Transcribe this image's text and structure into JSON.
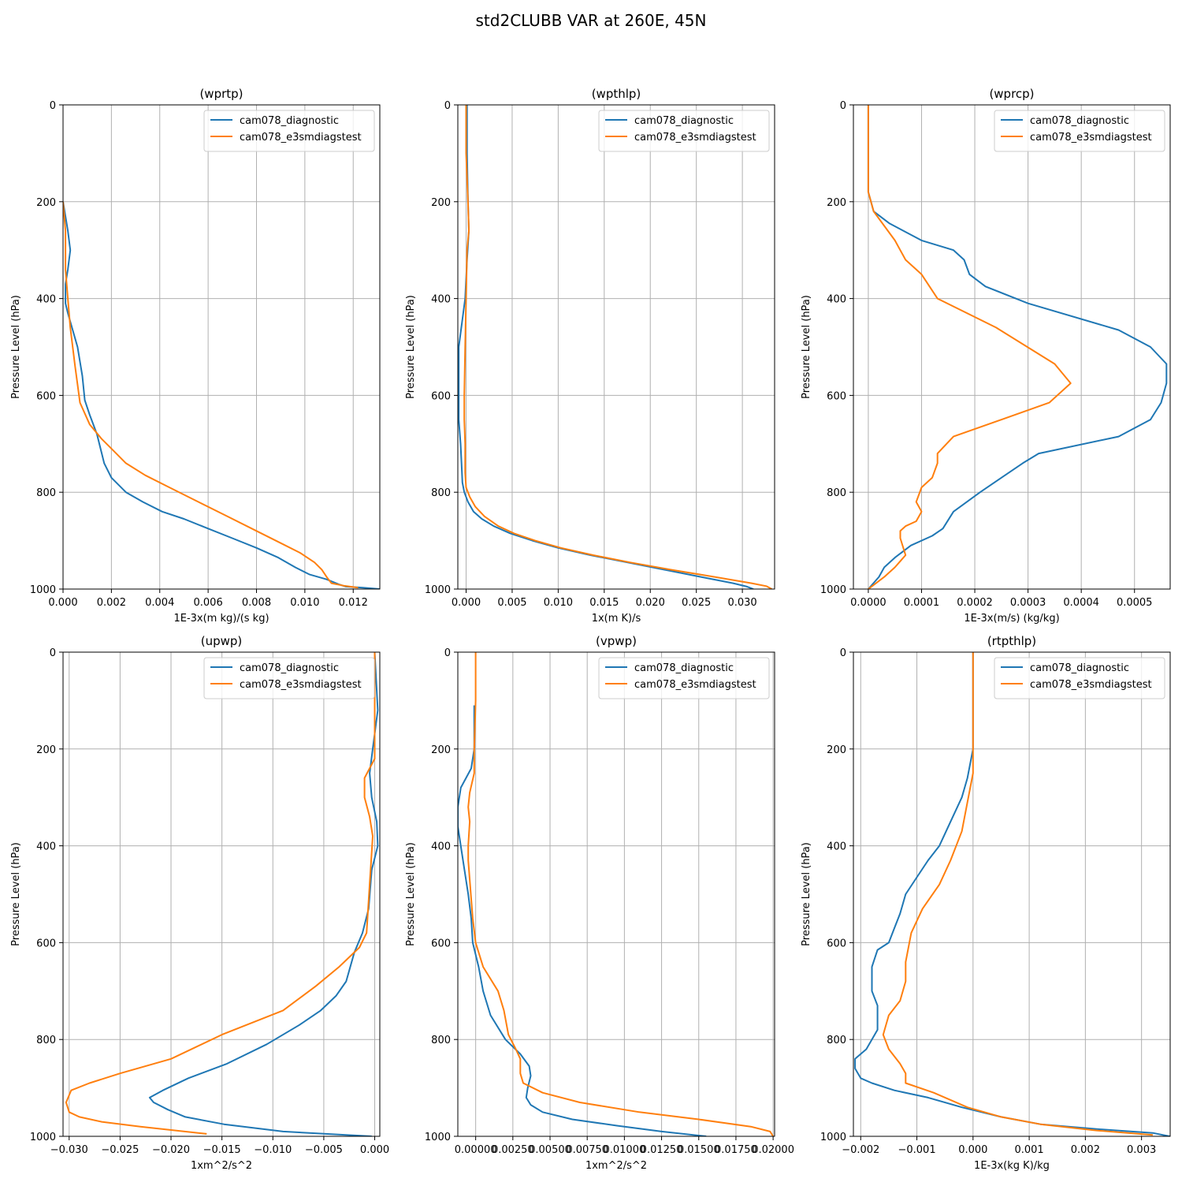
{
  "figure": {
    "title": "std2CLUBB VAR at 260E, 45N"
  },
  "colors": {
    "diag": "#1f77b4",
    "test": "#ff7f0e",
    "grid": "#b0b0b0",
    "axis": "#000000"
  },
  "chart_data": [
    {
      "type": "line",
      "title": "(wprtp)",
      "xlabel": "1E-3x(m kg)/(s kg)",
      "ylabel": "Pressure Level (hPa)",
      "xlim": [
        0,
        0.0131
      ],
      "ylim": [
        1000,
        0
      ],
      "xticks": [
        0,
        0.002,
        0.004,
        0.006,
        0.008,
        0.01,
        0.012
      ],
      "xticklabels": [
        "0.000",
        "0.002",
        "0.004",
        "0.006",
        "0.008",
        "0.010",
        "0.012"
      ],
      "yticks": [
        0,
        200,
        400,
        600,
        800,
        1000
      ],
      "yticklabels": [
        "0",
        "200",
        "400",
        "600",
        "800",
        "1000"
      ],
      "legend": "upper right",
      "series": [
        {
          "name": "cam078_diagnostic",
          "color": "#1f77b4",
          "x": [
            0,
            0.0002,
            0.0003,
            0.0002,
            0.0001,
            0.0001,
            0.0002,
            0.0006,
            0.0008,
            0.0009,
            0.0011,
            0.0014,
            0.0017,
            0.002,
            0.0026,
            0.0033,
            0.0041,
            0.005,
            0.006,
            0.007,
            0.008,
            0.0089,
            0.0096,
            0.0102,
            0.0109,
            0.0114,
            0.0117,
            0.0124,
            0.0131
          ],
          "y": [
            200,
            260,
            300,
            340,
            370,
            410,
            430,
            500,
            560,
            610,
            640,
            680,
            740,
            770,
            800,
            820,
            840,
            855,
            875,
            895,
            915,
            935,
            955,
            970,
            980,
            990,
            995,
            997,
            1000
          ]
        },
        {
          "name": "cam078_e3smdiagstest",
          "color": "#ff7f0e",
          "x": [
            0,
            0.0001,
            0.0001,
            0.0001,
            0.0002,
            0.0003,
            0.0005,
            0.0007,
            0.0011,
            0.0016,
            0.002,
            0.0026,
            0.0034,
            0.0044,
            0.0056,
            0.0068,
            0.008,
            0.009,
            0.0098,
            0.0104,
            0.0107,
            0.0109,
            0.0111,
            0.0116,
            0.0122
          ],
          "y": [
            200,
            260,
            300,
            340,
            400,
            460,
            540,
            615,
            660,
            690,
            710,
            740,
            765,
            790,
            820,
            850,
            880,
            905,
            925,
            945,
            960,
            975,
            988,
            993,
            997
          ]
        }
      ]
    },
    {
      "type": "line",
      "title": "(wpthlp)",
      "xlabel": "1x(m K)/s",
      "ylabel": "Pressure Level (hPa)",
      "xlim": [
        -0.0009,
        0.0335
      ],
      "ylim": [
        1000,
        0
      ],
      "xticks": [
        0,
        0.005,
        0.01,
        0.015,
        0.02,
        0.025,
        0.03
      ],
      "xticklabels": [
        "0.000",
        "0.005",
        "0.010",
        "0.015",
        "0.020",
        "0.025",
        "0.030"
      ],
      "yticks": [
        0,
        200,
        400,
        600,
        800,
        1000
      ],
      "yticklabels": [
        "0",
        "200",
        "400",
        "600",
        "800",
        "1000"
      ],
      "legend": "upper right",
      "series": [
        {
          "name": "cam078_diagnostic",
          "color": "#1f77b4",
          "x": [
            0.0001,
            0.0001,
            0.0002,
            0.0003,
            0.0001,
            -0.0001,
            -0.0008,
            -0.0008,
            -0.0008,
            -0.0006,
            -0.0005,
            -0.0004,
            -0.0002,
            0.0002,
            0.0008,
            0.0017,
            0.003,
            0.0048,
            0.0072,
            0.01,
            0.0135,
            0.0175,
            0.0215,
            0.0255,
            0.029,
            0.0305,
            0.0312
          ],
          "y": [
            0,
            100,
            200,
            260,
            320,
            400,
            500,
            600,
            650,
            700,
            740,
            780,
            800,
            820,
            840,
            855,
            870,
            885,
            900,
            915,
            930,
            945,
            960,
            975,
            988,
            995,
            1000
          ]
        },
        {
          "name": "cam078_e3smdiagstest",
          "color": "#ff7f0e",
          "x": [
            0,
            0,
            0.0002,
            0.0003,
            0.0001,
            0,
            -0.0001,
            -0.0002,
            -0.0002,
            -0.0001,
            -0.0001,
            0,
            0.0004,
            0.001,
            0.002,
            0.0035,
            0.0052,
            0.0075,
            0.0103,
            0.0138,
            0.0178,
            0.0222,
            0.027,
            0.031,
            0.0326,
            0.0332
          ],
          "y": [
            0,
            100,
            200,
            260,
            300,
            400,
            500,
            600,
            650,
            700,
            760,
            790,
            810,
            830,
            850,
            870,
            885,
            900,
            915,
            930,
            945,
            960,
            975,
            988,
            994,
            1000
          ]
        }
      ]
    },
    {
      "type": "line",
      "title": "(wprcp)",
      "xlabel": "1E-3x(m/s) (kg/kg)",
      "ylabel": "Pressure Level (hPa)",
      "xlim": [
        -2.8e-05,
        0.000567
      ],
      "ylim": [
        1000,
        0
      ],
      "xticks": [
        0,
        0.0001,
        0.0002,
        0.0003,
        0.0004,
        0.0005
      ],
      "xticklabels": [
        "0.0000",
        "0.0001",
        "0.0002",
        "0.0003",
        "0.0004",
        "0.0005"
      ],
      "yticks": [
        0,
        200,
        400,
        600,
        800,
        1000
      ],
      "yticklabels": [
        "0",
        "200",
        "400",
        "600",
        "800",
        "1000"
      ],
      "legend": "upper right",
      "series": [
        {
          "name": "cam078_diagnostic",
          "color": "#1f77b4",
          "x": [
            0,
            0,
            1e-05,
            4e-05,
            0.0001,
            0.00016,
            0.00018,
            0.00019,
            0.00022,
            0.0003,
            0.00047,
            0.00053,
            0.00056,
            0.00056,
            0.00055,
            0.00053,
            0.00047,
            0.00032,
            0.00029,
            0.00025,
            0.00021,
            0.00016,
            0.00014,
            0.00012,
            8e-05,
            5e-05,
            3e-05,
            2e-05,
            0
          ],
          "y": [
            0,
            180,
            220,
            245,
            280,
            300,
            320,
            350,
            375,
            410,
            465,
            500,
            535,
            575,
            615,
            650,
            685,
            720,
            740,
            770,
            800,
            840,
            875,
            890,
            910,
            935,
            955,
            975,
            1000
          ]
        },
        {
          "name": "cam078_e3smdiagstest",
          "color": "#ff7f0e",
          "x": [
            0,
            0,
            1e-05,
            3e-05,
            5e-05,
            7e-05,
            0.0001,
            0.00013,
            0.00024,
            0.00035,
            0.00038,
            0.00034,
            0.00016,
            0.00013,
            0.00013,
            0.00012,
            0.0001,
            9e-05,
            0.0001,
            9e-05,
            7e-05,
            6e-05,
            6e-05,
            7e-05,
            5e-05,
            3e-05,
            0
          ],
          "y": [
            0,
            180,
            220,
            250,
            280,
            320,
            350,
            400,
            460,
            535,
            575,
            615,
            685,
            720,
            740,
            770,
            790,
            820,
            840,
            860,
            870,
            880,
            895,
            930,
            955,
            975,
            1000
          ]
        }
      ]
    },
    {
      "type": "line",
      "title": "(upwp)",
      "xlabel": "1xm^2/s^2",
      "ylabel": "Pressure Level (hPa)",
      "xlim": [
        -0.0306,
        0.0005
      ],
      "ylim": [
        1000,
        0
      ],
      "xticks": [
        -0.03,
        -0.025,
        -0.02,
        -0.015,
        -0.01,
        -0.005,
        0
      ],
      "xticklabels": [
        "−0.030",
        "−0.025",
        "−0.020",
        "−0.015",
        "−0.010",
        "−0.005",
        "0.000"
      ],
      "yticks": [
        0,
        200,
        400,
        600,
        800,
        1000
      ],
      "yticklabels": [
        "0",
        "200",
        "400",
        "600",
        "800",
        "1000"
      ],
      "legend": "upper right",
      "series": [
        {
          "name": "cam078_diagnostic",
          "color": "#1f77b4",
          "x": [
            0,
            0.0003,
            -0.0002,
            -0.0005,
            -0.0003,
            0.0002,
            0.0003,
            -0.0003,
            -0.0006,
            -0.0012,
            -0.002,
            -0.0028,
            -0.0038,
            -0.0053,
            -0.0074,
            -0.0106,
            -0.0145,
            -0.0183,
            -0.0208,
            -0.0221,
            -0.0217,
            -0.0203,
            -0.0186,
            -0.0148,
            -0.009,
            -0.0003
          ],
          "y": [
            0,
            120,
            200,
            250,
            300,
            350,
            400,
            450,
            530,
            580,
            620,
            680,
            710,
            740,
            770,
            810,
            850,
            880,
            905,
            920,
            930,
            945,
            960,
            975,
            990,
            1000
          ]
        },
        {
          "name": "cam078_e3smdiagstest",
          "color": "#ff7f0e",
          "x": [
            0,
            0,
            0,
            -0.001,
            -0.001,
            -0.0005,
            -0.0002,
            -0.0005,
            -0.0008,
            -0.0015,
            -0.0035,
            -0.0058,
            -0.009,
            -0.015,
            -0.02,
            -0.025,
            -0.028,
            -0.0298,
            -0.0303,
            -0.03,
            -0.029,
            -0.0268,
            -0.023,
            -0.0165
          ],
          "y": [
            0,
            100,
            220,
            260,
            300,
            340,
            380,
            480,
            580,
            610,
            650,
            690,
            740,
            790,
            840,
            870,
            890,
            905,
            930,
            950,
            960,
            970,
            980,
            995
          ]
        }
      ]
    },
    {
      "type": "line",
      "title": "(vpwp)",
      "xlabel": "1xm^2/s^2",
      "ylabel": "Pressure Level (hPa)",
      "xlim": [
        -0.0012,
        0.0201
      ],
      "ylim": [
        1000,
        0
      ],
      "xticks": [
        0,
        0.0025,
        0.005,
        0.0075,
        0.01,
        0.0125,
        0.015,
        0.0175,
        0.02
      ],
      "xticklabels": [
        "0.00000",
        "0.00250",
        "0.00500",
        "0.00750",
        "0.01000",
        "0.01250",
        "0.01500",
        "0.01750",
        "0.02000"
      ],
      "yticks": [
        0,
        200,
        400,
        600,
        800,
        1000
      ],
      "yticklabels": [
        "0",
        "200",
        "400",
        "600",
        "800",
        "1000"
      ],
      "legend": "upper right",
      "series": [
        {
          "name": "cam078_diagnostic",
          "color": "#1f77b4",
          "x": [
            -0.0001,
            -0.0001,
            -0.0001,
            -0.0003,
            -0.001,
            -0.0012,
            -0.0012,
            -0.0008,
            -0.0005,
            -0.0003,
            -0.0002,
            0.0002,
            0.0005,
            0.001,
            0.002,
            0.003,
            0.0036,
            0.0037,
            0.0035,
            0.0034,
            0.0037,
            0.0045,
            0.0065,
            0.0095,
            0.0125,
            0.0155
          ],
          "y": [
            110,
            130,
            200,
            240,
            280,
            320,
            360,
            440,
            500,
            550,
            600,
            650,
            700,
            750,
            800,
            830,
            855,
            875,
            900,
            920,
            935,
            950,
            965,
            978,
            990,
            1000
          ]
        },
        {
          "name": "cam078_e3smdiagstest",
          "color": "#ff7f0e",
          "x": [
            0,
            0,
            -0.0001,
            -0.0001,
            -0.0004,
            -0.0005,
            -0.0004,
            -0.0005,
            -0.0005,
            -0.0002,
            0,
            0.0005,
            0.0015,
            0.0019,
            0.0022,
            0.0027,
            0.003,
            0.003,
            0.0032,
            0.0045,
            0.007,
            0.011,
            0.015,
            0.0185,
            0.0198,
            0.02
          ],
          "y": [
            0,
            100,
            200,
            250,
            290,
            320,
            350,
            400,
            430,
            550,
            600,
            650,
            700,
            740,
            790,
            820,
            840,
            870,
            890,
            910,
            930,
            950,
            965,
            980,
            990,
            1000
          ]
        }
      ]
    },
    {
      "type": "line",
      "title": "(rtpthlp)",
      "xlabel": "1E-3x(kg K)/kg",
      "ylabel": "Pressure Level (hPa)",
      "xlim": [
        -0.00213,
        0.00351
      ],
      "ylim": [
        1000,
        0
      ],
      "xticks": [
        -0.002,
        -0.001,
        0,
        0.001,
        0.002,
        0.003
      ],
      "xticklabels": [
        "−0.002",
        "−0.001",
        "0.000",
        "0.001",
        "0.002",
        "0.003"
      ],
      "yticks": [
        0,
        200,
        400,
        600,
        800,
        1000
      ],
      "yticklabels": [
        "0",
        "200",
        "400",
        "600",
        "800",
        "1000"
      ],
      "legend": "upper right",
      "series": [
        {
          "name": "cam078_diagnostic",
          "color": "#1f77b4",
          "x": [
            0,
            0,
            -0.0001,
            -0.0002,
            -0.0004,
            -0.0006,
            -0.0008,
            -0.001,
            -0.0012,
            -0.0013,
            -0.0014,
            -0.0015,
            -0.0017,
            -0.0018,
            -0.0018,
            -0.0017,
            -0.0017,
            -0.0019,
            -0.0021,
            -0.0021,
            -0.002,
            -0.0018,
            -0.0014,
            -0.0008,
            -0.0002,
            0.0005,
            0.0012,
            0.0022,
            0.0032,
            0.0035
          ],
          "y": [
            0,
            200,
            260,
            300,
            350,
            400,
            430,
            465,
            500,
            540,
            570,
            600,
            615,
            650,
            700,
            730,
            780,
            820,
            840,
            860,
            880,
            890,
            905,
            920,
            940,
            960,
            975,
            985,
            993,
            1000
          ]
        },
        {
          "name": "cam078_e3smdiagstest",
          "color": "#ff7f0e",
          "x": [
            0,
            0,
            -0.0001,
            -0.0002,
            -0.0004,
            -0.0006,
            -0.0009,
            -0.0011,
            -0.0012,
            -0.0012,
            -0.0013,
            -0.0015,
            -0.0016,
            -0.0015,
            -0.0013,
            -0.0012,
            -0.0012,
            -0.0007,
            -0.0001,
            0.0005,
            0.0012,
            0.0022,
            0.0032
          ],
          "y": [
            0,
            250,
            310,
            370,
            430,
            480,
            530,
            580,
            640,
            680,
            720,
            750,
            790,
            820,
            850,
            870,
            890,
            910,
            940,
            960,
            975,
            988,
            997
          ]
        }
      ]
    }
  ]
}
